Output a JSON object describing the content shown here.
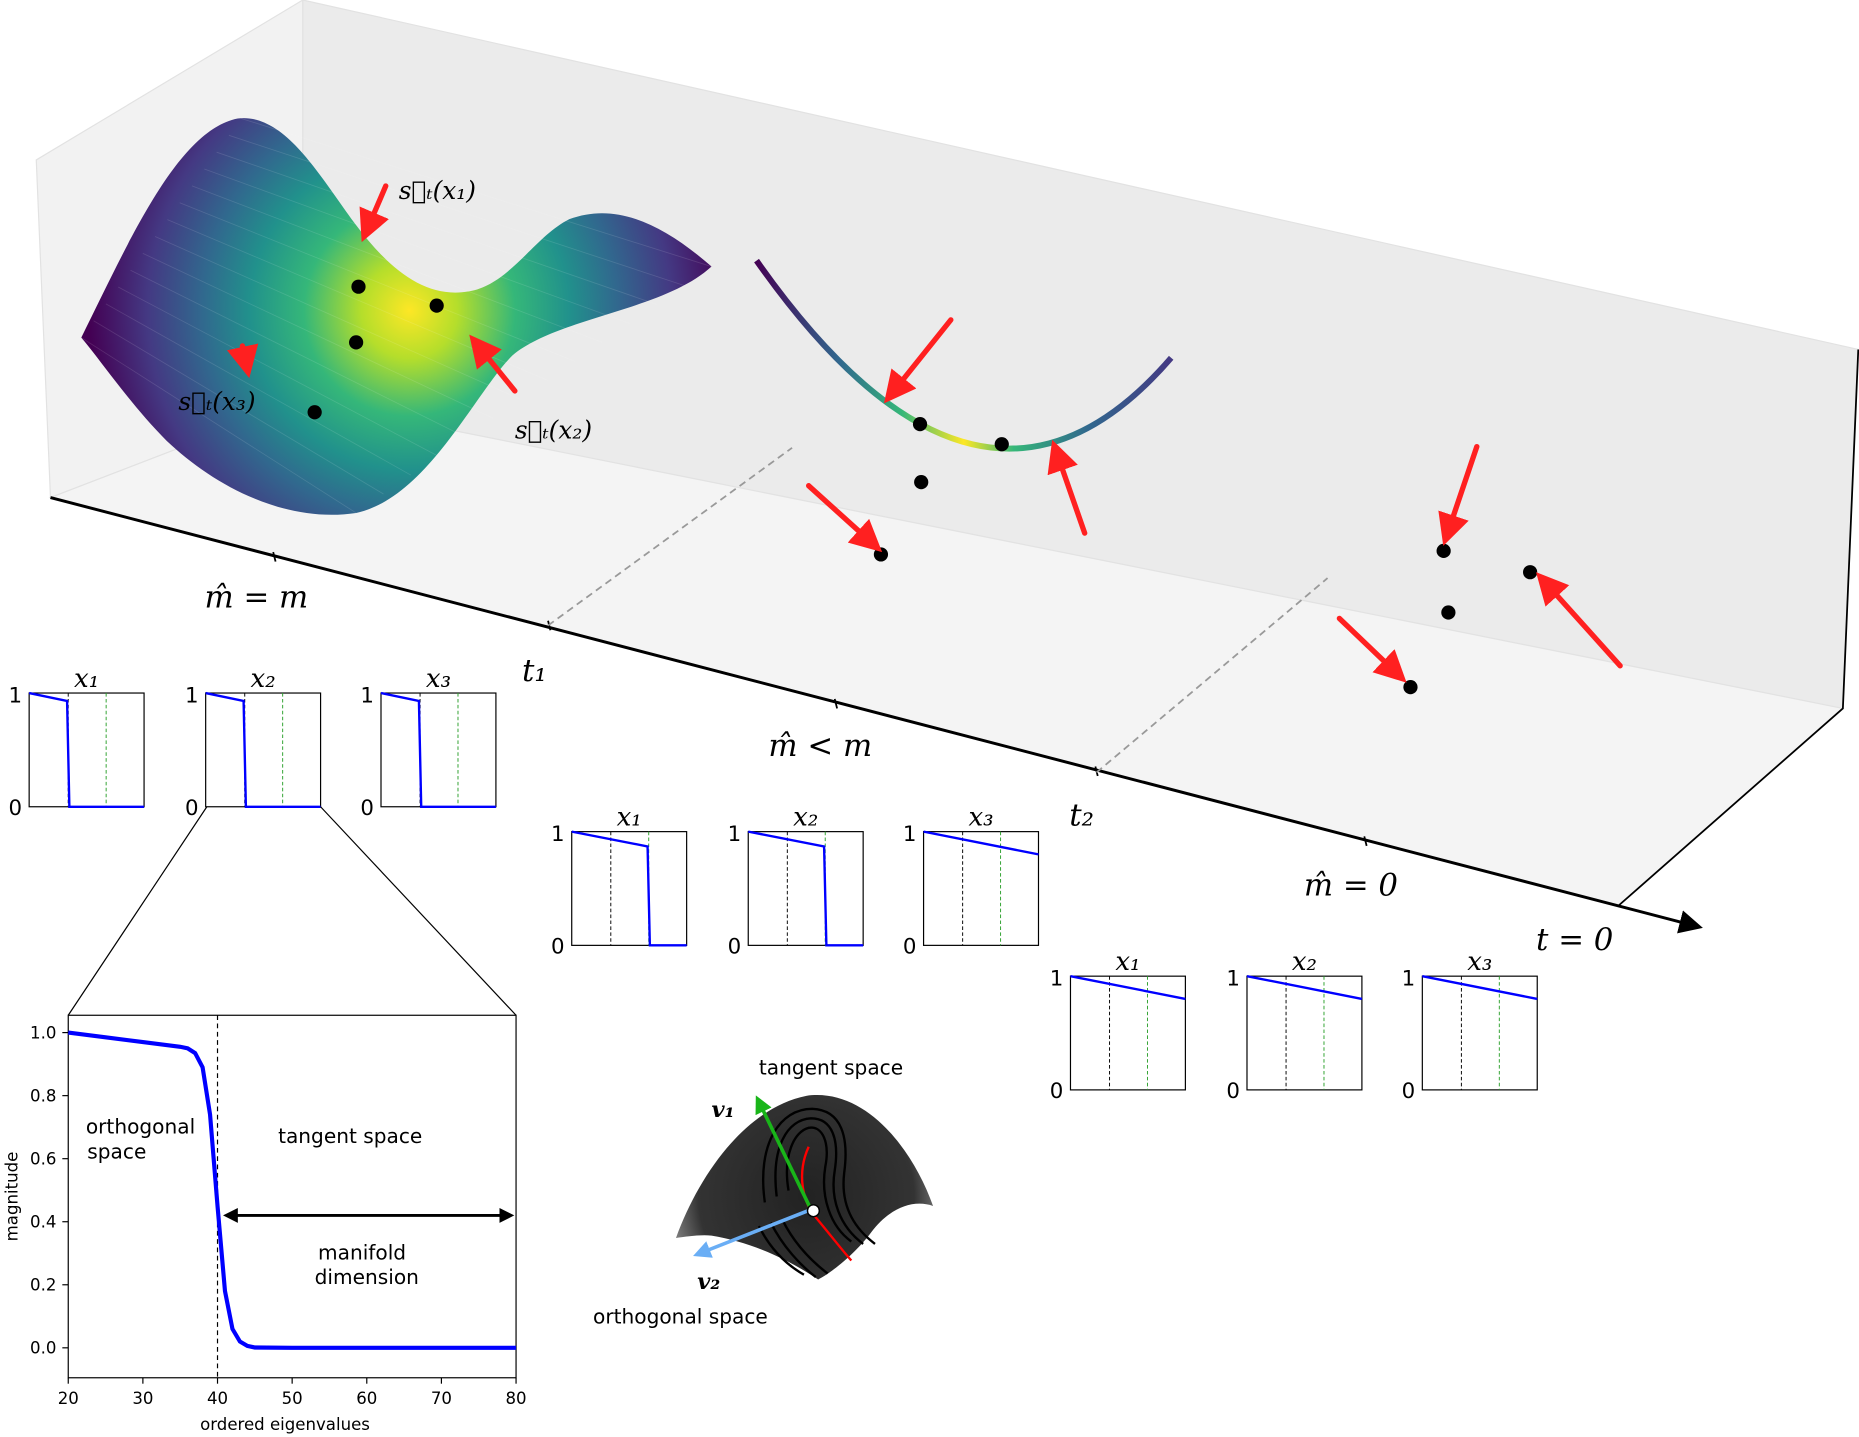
{
  "colors": {
    "surface_colormap": [
      "#440154",
      "#443983",
      "#31688e",
      "#21918c",
      "#35b779",
      "#b5de2b",
      "#fde725"
    ],
    "score_arrow": "#ff2020",
    "data_point": "#000000",
    "eigen_curve": "#0000ff",
    "dashed_black": "#000000",
    "dashed_green": "#2ca02c",
    "tangent_vector": "#19b519",
    "orthogonal_vector": "#6aaef5",
    "pane": "#f0f0f0"
  },
  "time_axis": {
    "stage_labels": [
      "m̂ = m",
      "m̂ < m",
      "m̂ = 0"
    ],
    "time_labels": [
      "t₁",
      "t₂",
      "t = 0"
    ]
  },
  "score_labels": {
    "x1": "s⃗ₜ(x₁)",
    "x2": "s⃗ₜ(x₂)",
    "x3": "s⃗ₜ(x₃)"
  },
  "panel_groups": [
    {
      "stage": "m̂ = m",
      "panels": [
        {
          "title": "x₁",
          "ytick_top": "1",
          "ytick_bottom": "0",
          "curve": [
            [
              0,
              1
            ],
            [
              0.33,
              0.93
            ],
            [
              0.35,
              0
            ],
            [
              1,
              0
            ]
          ]
        },
        {
          "title": "x₂",
          "ytick_top": "1",
          "ytick_bottom": "0",
          "curve": [
            [
              0,
              1
            ],
            [
              0.33,
              0.93
            ],
            [
              0.35,
              0
            ],
            [
              1,
              0
            ]
          ]
        },
        {
          "title": "x₃",
          "ytick_top": "1",
          "ytick_bottom": "0",
          "curve": [
            [
              0,
              1
            ],
            [
              0.33,
              0.93
            ],
            [
              0.35,
              0
            ],
            [
              1,
              0
            ]
          ]
        }
      ]
    },
    {
      "stage": "m̂ < m",
      "panels": [
        {
          "title": "x₁",
          "ytick_top": "1",
          "ytick_bottom": "0",
          "curve": [
            [
              0,
              1
            ],
            [
              0.66,
              0.87
            ],
            [
              0.68,
              0
            ],
            [
              1,
              0
            ]
          ]
        },
        {
          "title": "x₂",
          "ytick_top": "1",
          "ytick_bottom": "0",
          "curve": [
            [
              0,
              1
            ],
            [
              0.66,
              0.87
            ],
            [
              0.68,
              0
            ],
            [
              1,
              0
            ]
          ]
        },
        {
          "title": "x₃",
          "ytick_top": "1",
          "ytick_bottom": "0",
          "curve": [
            [
              0,
              1
            ],
            [
              1,
              0.8
            ]
          ]
        }
      ]
    },
    {
      "stage": "m̂ = 0",
      "panels": [
        {
          "title": "x₁",
          "ytick_top": "1",
          "ytick_bottom": "0",
          "curve": [
            [
              0,
              1
            ],
            [
              1,
              0.8
            ]
          ]
        },
        {
          "title": "x₂",
          "ytick_top": "1",
          "ytick_bottom": "0",
          "curve": [
            [
              0,
              1
            ],
            [
              1,
              0.8
            ]
          ]
        },
        {
          "title": "x₃",
          "ytick_top": "1",
          "ytick_bottom": "0",
          "curve": [
            [
              0,
              1
            ],
            [
              1,
              0.8
            ]
          ]
        }
      ]
    }
  ],
  "chart_data": {
    "type": "line",
    "xlabel": "ordered eigenvalues",
    "ylabel": "magnitude",
    "xlim": [
      20,
      80
    ],
    "ylim": [
      -0.095,
      1.055
    ],
    "xticks": [
      20,
      30,
      40,
      50,
      60,
      70,
      80
    ],
    "yticks": [
      "0.0",
      "0.2",
      "0.4",
      "0.6",
      "0.8",
      "1.0"
    ],
    "grid": false,
    "series": [
      {
        "points": [
          [
            20,
            1.0
          ],
          [
            25,
            0.985
          ],
          [
            30,
            0.97
          ],
          [
            35,
            0.955
          ],
          [
            36,
            0.95
          ],
          [
            37,
            0.935
          ],
          [
            38,
            0.89
          ],
          [
            39,
            0.74
          ],
          [
            40,
            0.45
          ],
          [
            41,
            0.18
          ],
          [
            42,
            0.06
          ],
          [
            43,
            0.02
          ],
          [
            44,
            0.006
          ],
          [
            45,
            0.001
          ],
          [
            50,
            0
          ],
          [
            80,
            0
          ]
        ]
      }
    ],
    "vline_at": 40,
    "arrow": {
      "from": 40.5,
      "to": 80,
      "y": 0.42
    },
    "annotations": {
      "orthogonal": [
        "orthogonal",
        "space"
      ],
      "tangent": "tangent space",
      "manifold": [
        "manifold",
        "dimension"
      ]
    }
  },
  "manifold_sketch": {
    "tangent_label": "tangent space",
    "orthogonal_label": "orthogonal space",
    "v1": "v₁",
    "v2": "v₂"
  }
}
